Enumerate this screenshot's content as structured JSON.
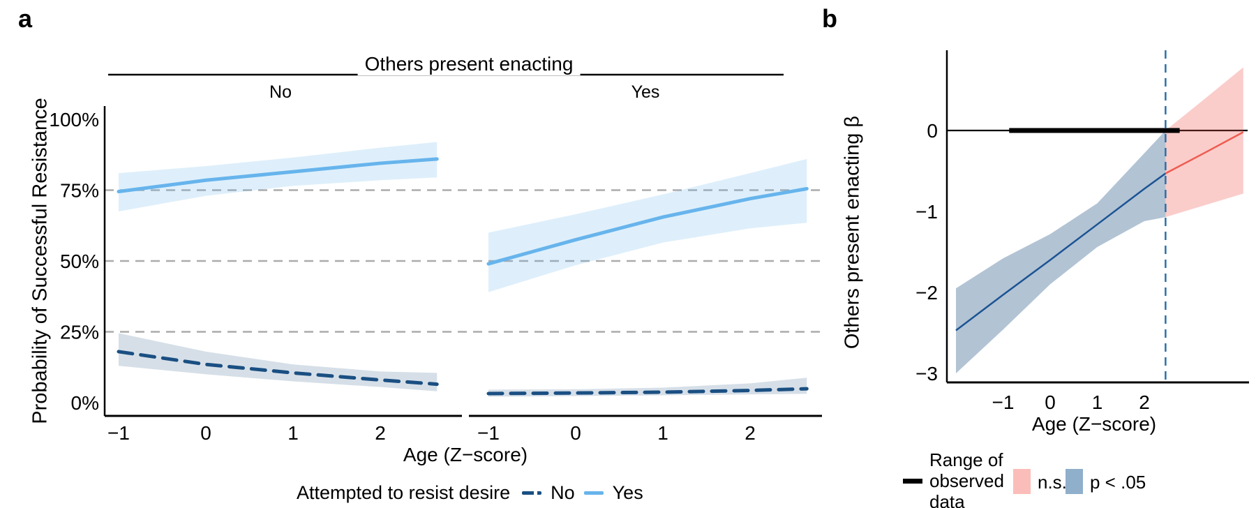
{
  "panels": {
    "a": {
      "label": "a"
    },
    "b": {
      "label": "b"
    }
  },
  "colors": {
    "resist_yes_line": "#67B4EC",
    "resist_no_line": "#1A4F82",
    "band_alpha_yes": 0.22,
    "band_alpha_no": 0.18,
    "gridline": "#ABABAB",
    "axis": "#000000",
    "sig_line": "#1B5393",
    "sig_band": "#35618E",
    "sig_band_alpha": 0.38,
    "ns_line": "#EF5B51",
    "ns_band": "#EF5B51",
    "ns_band_alpha": 0.3,
    "vline": "#2D6FA8",
    "observed_line": "#000000",
    "legend_ns_swatch": "#FBBDB9",
    "legend_sig_swatch": "#8FAFCB"
  },
  "chart_data": [
    {
      "type": "line",
      "title": "Others present enacting",
      "facets": [
        "No",
        "Yes"
      ],
      "xlabel": "Age (Z−score)",
      "ylabel": "Probability of Successful Resistance",
      "x": [
        -1,
        0,
        1,
        2,
        2.65
      ],
      "xlim": [
        -1.2,
        2.85
      ],
      "ylim": [
        0,
        100
      ],
      "x_ticks": [
        {
          "v": -1,
          "label": "−1"
        },
        {
          "v": 0,
          "label": "0"
        },
        {
          "v": 1,
          "label": "1"
        },
        {
          "v": 2,
          "label": "2"
        }
      ],
      "y_ticks": [
        {
          "v": 100,
          "label": "100%"
        },
        {
          "v": 75,
          "label": "75%"
        },
        {
          "v": 50,
          "label": "50%"
        },
        {
          "v": 25,
          "label": "25%"
        },
        {
          "v": 0,
          "label": "0%"
        }
      ],
      "gridlines_y": [
        25,
        50,
        75
      ],
      "legend_title": "Attempted to resist desire",
      "legend_items": [
        "No",
        "Yes"
      ],
      "series": [
        {
          "facet": "No",
          "name": "Yes",
          "style": "solid",
          "y": [
            74.5,
            78.5,
            81.5,
            84.5,
            86
          ],
          "upper": [
            81,
            83.5,
            86.5,
            90,
            92
          ],
          "lower": [
            67.5,
            73,
            76.5,
            78.5,
            79.5
          ]
        },
        {
          "facet": "No",
          "name": "No",
          "style": "dashed",
          "y": [
            18,
            13.5,
            10.5,
            8,
            6.5
          ],
          "upper": [
            24.5,
            18,
            13.5,
            11,
            10.5
          ],
          "lower": [
            13,
            10,
            7.5,
            5.5,
            4
          ]
        },
        {
          "facet": "Yes",
          "name": "Yes",
          "style": "solid",
          "y": [
            49,
            57.5,
            65.5,
            72,
            75.5
          ],
          "upper": [
            60,
            66.5,
            73.5,
            81,
            86
          ],
          "lower": [
            39,
            48.5,
            56.5,
            61.5,
            63.5
          ]
        },
        {
          "facet": "Yes",
          "name": "No",
          "style": "dashed",
          "y": [
            3.2,
            3.4,
            3.7,
            4.3,
            4.9
          ],
          "upper": [
            4.6,
            4.7,
            5.3,
            6.8,
            8.8
          ],
          "lower": [
            2.1,
            2.3,
            2.6,
            2.9,
            3.1
          ]
        }
      ]
    },
    {
      "type": "line",
      "xlabel": "Age (Z−score)",
      "ylabel": "Others present enacting β",
      "xlim": [
        -2.2,
        4.2
      ],
      "ylim": [
        -3.1,
        1.0
      ],
      "x_ticks": [
        {
          "v": -1,
          "label": "−1"
        },
        {
          "v": 0,
          "label": "0"
        },
        {
          "v": 1,
          "label": "1"
        },
        {
          "v": 2,
          "label": "2"
        }
      ],
      "y_ticks": [
        {
          "v": 0,
          "label": "0"
        },
        {
          "v": -1,
          "label": "−1"
        },
        {
          "v": -2,
          "label": "−2"
        },
        {
          "v": -3,
          "label": "−3"
        }
      ],
      "zero_line": 0,
      "observed_range": [
        -0.87,
        2.75
      ],
      "vline_x": 2.45,
      "segments": [
        {
          "name": "p < .05",
          "x": [
            -2,
            -1,
            0,
            1,
            2,
            2.45
          ],
          "y": [
            -2.47,
            -2.03,
            -1.6,
            -1.16,
            -0.72,
            -0.53
          ],
          "upper": [
            -1.95,
            -1.58,
            -1.28,
            -0.9,
            -0.28,
            0
          ],
          "lower": [
            -3.0,
            -2.46,
            -1.9,
            -1.44,
            -1.12,
            -1.07
          ]
        },
        {
          "name": "n.s.",
          "x": [
            2.45,
            3.3,
            4.1
          ],
          "y": [
            -0.53,
            -0.27,
            -0.02
          ],
          "upper": [
            0,
            0.4,
            0.78
          ],
          "lower": [
            -1.07,
            -0.92,
            -0.78
          ]
        }
      ],
      "legend_items": [
        {
          "label": "Range of observed data",
          "swatch": "line"
        },
        {
          "label": "n.s.",
          "swatch": "ns"
        },
        {
          "label": "p < .05",
          "swatch": "sig"
        }
      ]
    }
  ]
}
